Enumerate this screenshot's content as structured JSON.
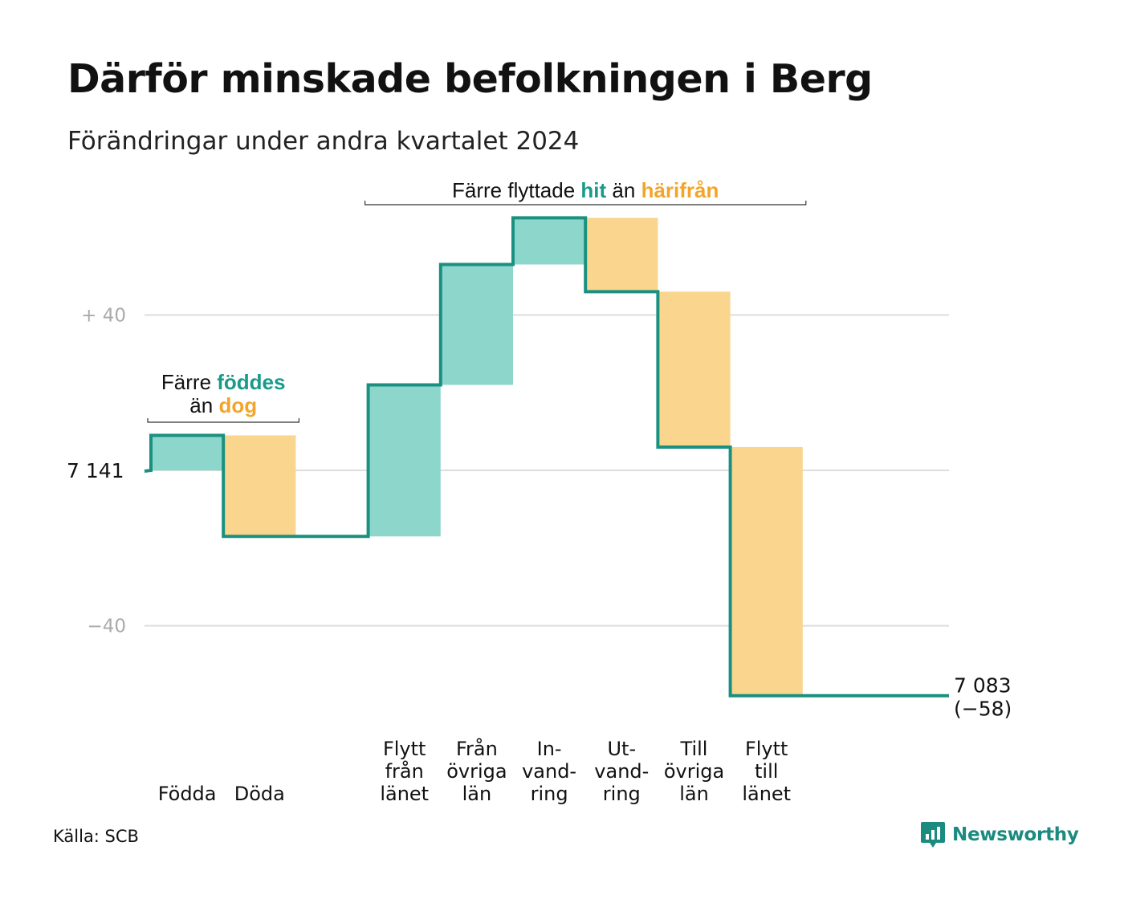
{
  "title": "Därför minskade befolkningen i Berg",
  "subtitle": "Förändringar under andra kvartalet 2024",
  "source": "Källa: SCB",
  "logo": {
    "text": "Newsworthy",
    "icon": "newsworthy-chart-icon"
  },
  "colors": {
    "positive_fill": "#8dd6cc",
    "negative_fill": "#f9d58e",
    "line": "#1a9080",
    "teal_text": "#1a9a8a",
    "orange_text": "#f2a52a",
    "grid": "#dddddd",
    "tick_text": "#aaaaaa"
  },
  "chart_data": {
    "type": "waterfall",
    "start_value": 7141,
    "start_label": "7 141",
    "end_value": 7083,
    "end_label": "7 083",
    "end_change_label": "(−58)",
    "y_ticks": [
      {
        "value": 40,
        "label": "+  40"
      },
      {
        "value": 0,
        "label": ""
      },
      {
        "value": -40,
        "label": "−40"
      }
    ],
    "ylim": [
      -68,
      68
    ],
    "categories": [
      {
        "label_lines": [
          "Födda"
        ],
        "change": 9
      },
      {
        "label_lines": [
          "Döda"
        ],
        "change": -26
      },
      {
        "label_lines": [],
        "change": 0
      },
      {
        "label_lines": [
          "Flytt",
          "från",
          "länet"
        ],
        "change": 39
      },
      {
        "label_lines": [
          "Från",
          "övriga",
          "län"
        ],
        "change": 31
      },
      {
        "label_lines": [
          "In-",
          "vand-",
          "ring"
        ],
        "change": 12
      },
      {
        "label_lines": [
          "Ut-",
          "vand-",
          "ring"
        ],
        "change": -19
      },
      {
        "label_lines": [
          "Till",
          "övriga",
          "län"
        ],
        "change": -40
      },
      {
        "label_lines": [
          "Flytt",
          "till",
          "länet"
        ],
        "change": -64
      },
      {
        "label_lines": [],
        "change": 0
      }
    ],
    "annotations": [
      {
        "parts": [
          {
            "text": "Färre ",
            "color": "dark"
          },
          {
            "text": "föddes",
            "color": "teal"
          }
        ],
        "parts2": [
          {
            "text": "än ",
            "color": "dark"
          },
          {
            "text": "dog",
            "color": "orange"
          }
        ],
        "span": [
          0,
          1
        ]
      },
      {
        "parts": [
          {
            "text": "Färre flyttade ",
            "color": "dark"
          },
          {
            "text": "hit",
            "color": "teal"
          },
          {
            "text": "  än ",
            "color": "dark"
          },
          {
            "text": "härifrån",
            "color": "orange"
          }
        ],
        "span": [
          3,
          8
        ]
      }
    ]
  }
}
